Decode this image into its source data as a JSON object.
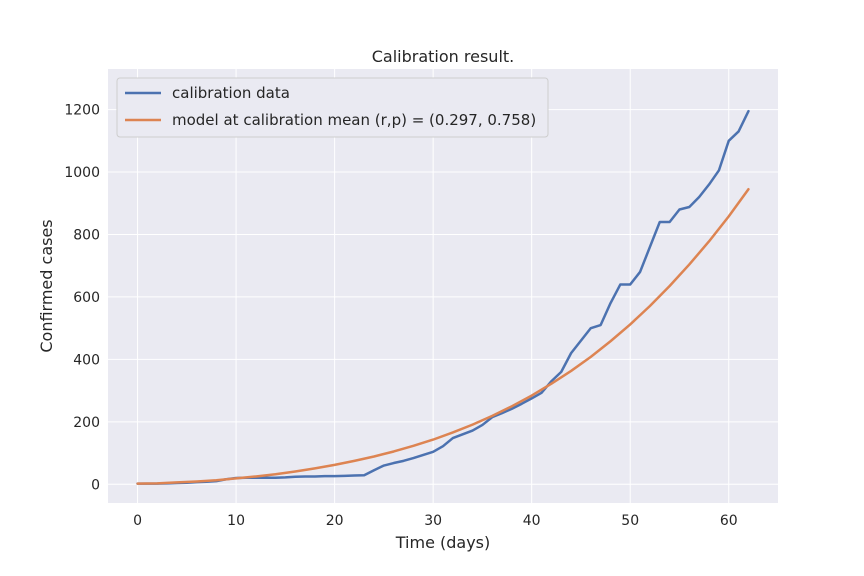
{
  "chart_data": {
    "type": "line",
    "title": "Calibration result.",
    "xlabel": "Time (days)",
    "ylabel": "Confirmed cases",
    "xlim": [
      -3,
      65
    ],
    "ylim": [
      -60,
      1330
    ],
    "xticks": [
      0,
      10,
      20,
      30,
      40,
      50,
      60
    ],
    "yticks": [
      0,
      200,
      400,
      600,
      800,
      1000,
      1200
    ],
    "grid": true,
    "legend_position": "upper-left",
    "colors": {
      "background": "#EAEAF2",
      "grid": "#FFFFFF",
      "calibration": "#4C72B0",
      "model": "#DD8452"
    },
    "series": [
      {
        "name": "calibration data",
        "x": [
          0,
          1,
          2,
          3,
          4,
          5,
          6,
          7,
          8,
          9,
          10,
          11,
          12,
          13,
          14,
          15,
          16,
          17,
          18,
          19,
          20,
          21,
          22,
          23,
          24,
          25,
          26,
          27,
          28,
          29,
          30,
          31,
          32,
          33,
          34,
          35,
          36,
          37,
          38,
          39,
          40,
          41,
          42,
          43,
          44,
          45,
          46,
          47,
          48,
          49,
          50,
          51,
          52,
          53,
          54,
          55,
          56,
          57,
          58,
          59,
          60,
          61,
          62
        ],
        "y": [
          2,
          2,
          2,
          3,
          4,
          5,
          7,
          8,
          10,
          16,
          20,
          21,
          21,
          21,
          21,
          22,
          24,
          25,
          25,
          26,
          26,
          27,
          28,
          29,
          45,
          60,
          68,
          75,
          84,
          94,
          104,
          122,
          148,
          160,
          172,
          190,
          215,
          228,
          242,
          258,
          275,
          293,
          330,
          360,
          420,
          460,
          500,
          510,
          580,
          640,
          640,
          680,
          760,
          840,
          840,
          880,
          888,
          920,
          960,
          1005,
          1100,
          1130,
          1195
        ]
      },
      {
        "name": "model at calibration mean (r,p) = (0.297, 0.758)",
        "x": [
          0,
          2,
          4,
          6,
          8,
          10,
          12,
          14,
          16,
          18,
          20,
          22,
          24,
          26,
          28,
          30,
          32,
          34,
          36,
          38,
          40,
          42,
          44,
          46,
          48,
          50,
          52,
          54,
          56,
          58,
          60,
          62
        ],
        "y": [
          2,
          3,
          6,
          9,
          13,
          19,
          25,
          32,
          41,
          51,
          62,
          75,
          89,
          105,
          123,
          143,
          166,
          191,
          219,
          250,
          284,
          322,
          363,
          408,
          458,
          512,
          571,
          635,
          704,
          778,
          858,
          945
        ]
      }
    ]
  }
}
